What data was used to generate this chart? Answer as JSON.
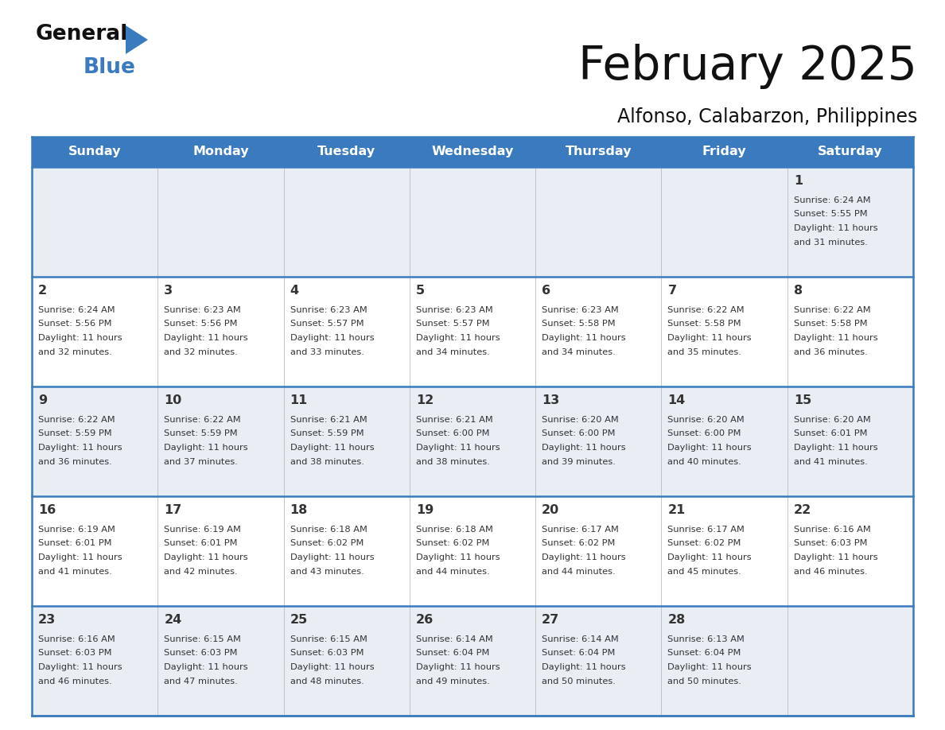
{
  "title": "February 2025",
  "subtitle": "Alfonso, Calabarzon, Philippines",
  "header_bg": "#3a7abf",
  "header_text": "#ffffff",
  "cell_bg_light": "#e8eef4",
  "cell_bg_white": "#ffffff",
  "line_color": "#3a7abf",
  "text_color": "#333333",
  "day_headers": [
    "Sunday",
    "Monday",
    "Tuesday",
    "Wednesday",
    "Thursday",
    "Friday",
    "Saturday"
  ],
  "days": [
    {
      "day": 1,
      "col": 6,
      "row": 0,
      "sunrise": "6:24 AM",
      "sunset": "5:55 PM",
      "daylight": "11 hours and 31 minutes."
    },
    {
      "day": 2,
      "col": 0,
      "row": 1,
      "sunrise": "6:24 AM",
      "sunset": "5:56 PM",
      "daylight": "11 hours and 32 minutes."
    },
    {
      "day": 3,
      "col": 1,
      "row": 1,
      "sunrise": "6:23 AM",
      "sunset": "5:56 PM",
      "daylight": "11 hours and 32 minutes."
    },
    {
      "day": 4,
      "col": 2,
      "row": 1,
      "sunrise": "6:23 AM",
      "sunset": "5:57 PM",
      "daylight": "11 hours and 33 minutes."
    },
    {
      "day": 5,
      "col": 3,
      "row": 1,
      "sunrise": "6:23 AM",
      "sunset": "5:57 PM",
      "daylight": "11 hours and 34 minutes."
    },
    {
      "day": 6,
      "col": 4,
      "row": 1,
      "sunrise": "6:23 AM",
      "sunset": "5:58 PM",
      "daylight": "11 hours and 34 minutes."
    },
    {
      "day": 7,
      "col": 5,
      "row": 1,
      "sunrise": "6:22 AM",
      "sunset": "5:58 PM",
      "daylight": "11 hours and 35 minutes."
    },
    {
      "day": 8,
      "col": 6,
      "row": 1,
      "sunrise": "6:22 AM",
      "sunset": "5:58 PM",
      "daylight": "11 hours and 36 minutes."
    },
    {
      "day": 9,
      "col": 0,
      "row": 2,
      "sunrise": "6:22 AM",
      "sunset": "5:59 PM",
      "daylight": "11 hours and 36 minutes."
    },
    {
      "day": 10,
      "col": 1,
      "row": 2,
      "sunrise": "6:22 AM",
      "sunset": "5:59 PM",
      "daylight": "11 hours and 37 minutes."
    },
    {
      "day": 11,
      "col": 2,
      "row": 2,
      "sunrise": "6:21 AM",
      "sunset": "5:59 PM",
      "daylight": "11 hours and 38 minutes."
    },
    {
      "day": 12,
      "col": 3,
      "row": 2,
      "sunrise": "6:21 AM",
      "sunset": "6:00 PM",
      "daylight": "11 hours and 38 minutes."
    },
    {
      "day": 13,
      "col": 4,
      "row": 2,
      "sunrise": "6:20 AM",
      "sunset": "6:00 PM",
      "daylight": "11 hours and 39 minutes."
    },
    {
      "day": 14,
      "col": 5,
      "row": 2,
      "sunrise": "6:20 AM",
      "sunset": "6:00 PM",
      "daylight": "11 hours and 40 minutes."
    },
    {
      "day": 15,
      "col": 6,
      "row": 2,
      "sunrise": "6:20 AM",
      "sunset": "6:01 PM",
      "daylight": "11 hours and 41 minutes."
    },
    {
      "day": 16,
      "col": 0,
      "row": 3,
      "sunrise": "6:19 AM",
      "sunset": "6:01 PM",
      "daylight": "11 hours and 41 minutes."
    },
    {
      "day": 17,
      "col": 1,
      "row": 3,
      "sunrise": "6:19 AM",
      "sunset": "6:01 PM",
      "daylight": "11 hours and 42 minutes."
    },
    {
      "day": 18,
      "col": 2,
      "row": 3,
      "sunrise": "6:18 AM",
      "sunset": "6:02 PM",
      "daylight": "11 hours and 43 minutes."
    },
    {
      "day": 19,
      "col": 3,
      "row": 3,
      "sunrise": "6:18 AM",
      "sunset": "6:02 PM",
      "daylight": "11 hours and 44 minutes."
    },
    {
      "day": 20,
      "col": 4,
      "row": 3,
      "sunrise": "6:17 AM",
      "sunset": "6:02 PM",
      "daylight": "11 hours and 44 minutes."
    },
    {
      "day": 21,
      "col": 5,
      "row": 3,
      "sunrise": "6:17 AM",
      "sunset": "6:02 PM",
      "daylight": "11 hours and 45 minutes."
    },
    {
      "day": 22,
      "col": 6,
      "row": 3,
      "sunrise": "6:16 AM",
      "sunset": "6:03 PM",
      "daylight": "11 hours and 46 minutes."
    },
    {
      "day": 23,
      "col": 0,
      "row": 4,
      "sunrise": "6:16 AM",
      "sunset": "6:03 PM",
      "daylight": "11 hours and 46 minutes."
    },
    {
      "day": 24,
      "col": 1,
      "row": 4,
      "sunrise": "6:15 AM",
      "sunset": "6:03 PM",
      "daylight": "11 hours and 47 minutes."
    },
    {
      "day": 25,
      "col": 2,
      "row": 4,
      "sunrise": "6:15 AM",
      "sunset": "6:03 PM",
      "daylight": "11 hours and 48 minutes."
    },
    {
      "day": 26,
      "col": 3,
      "row": 4,
      "sunrise": "6:14 AM",
      "sunset": "6:04 PM",
      "daylight": "11 hours and 49 minutes."
    },
    {
      "day": 27,
      "col": 4,
      "row": 4,
      "sunrise": "6:14 AM",
      "sunset": "6:04 PM",
      "daylight": "11 hours and 50 minutes."
    },
    {
      "day": 28,
      "col": 5,
      "row": 4,
      "sunrise": "6:13 AM",
      "sunset": "6:04 PM",
      "daylight": "11 hours and 50 minutes."
    }
  ],
  "logo_color_general": "#111111",
  "logo_color_blue": "#3a7abf",
  "logo_triangle_color": "#3a7abf"
}
